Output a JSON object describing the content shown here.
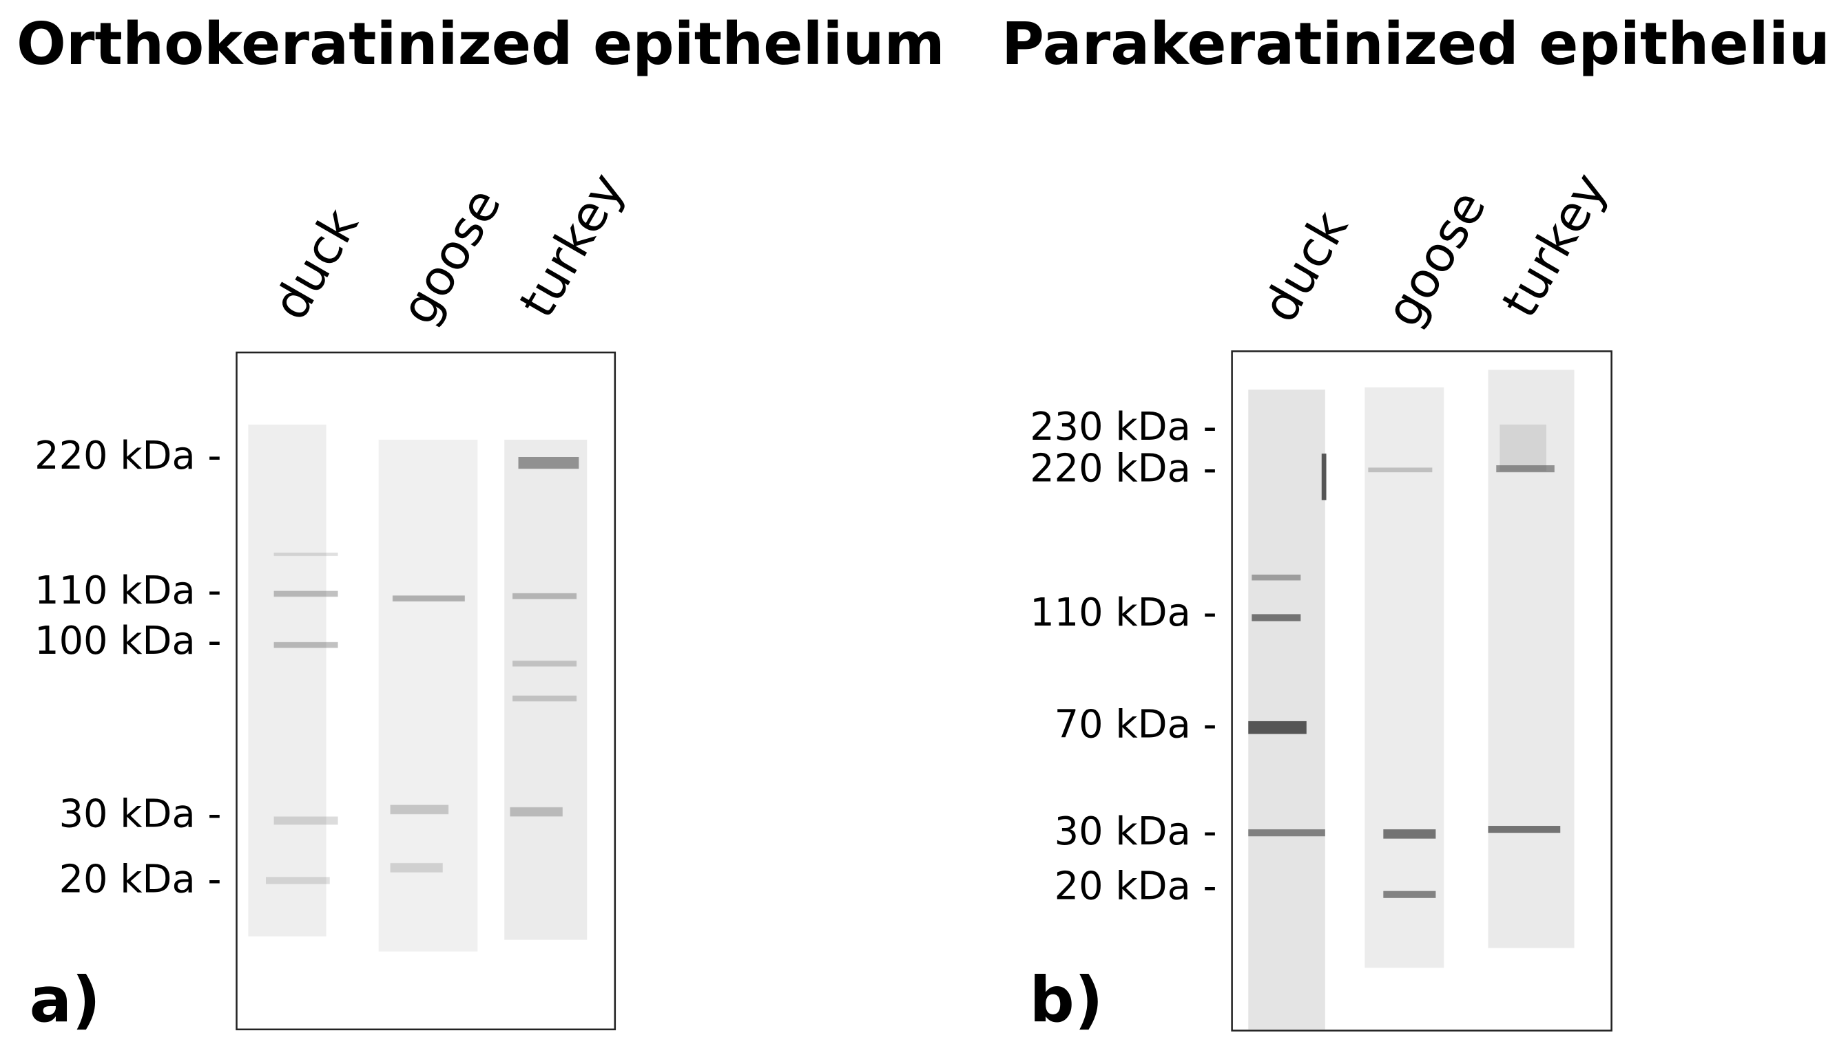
{
  "panels": [
    {
      "title": "Orthokeratinized epithelium",
      "label": "a)",
      "lanes": [
        "duck",
        "goose",
        "turkey"
      ],
      "markers": [
        "220 kDa -",
        "110 kDa -",
        "100 kDa -",
        "30 kDa -",
        "20 kDa -"
      ]
    },
    {
      "title": "Parakeratinized epithelium",
      "label": "b)",
      "lanes": [
        "duck",
        "goose",
        "turkey"
      ],
      "markers": [
        "230 kDa -",
        "220 kDa -",
        "110 kDa -",
        "70 kDa -",
        "30 kDa -",
        "20 kDa -"
      ]
    }
  ]
}
